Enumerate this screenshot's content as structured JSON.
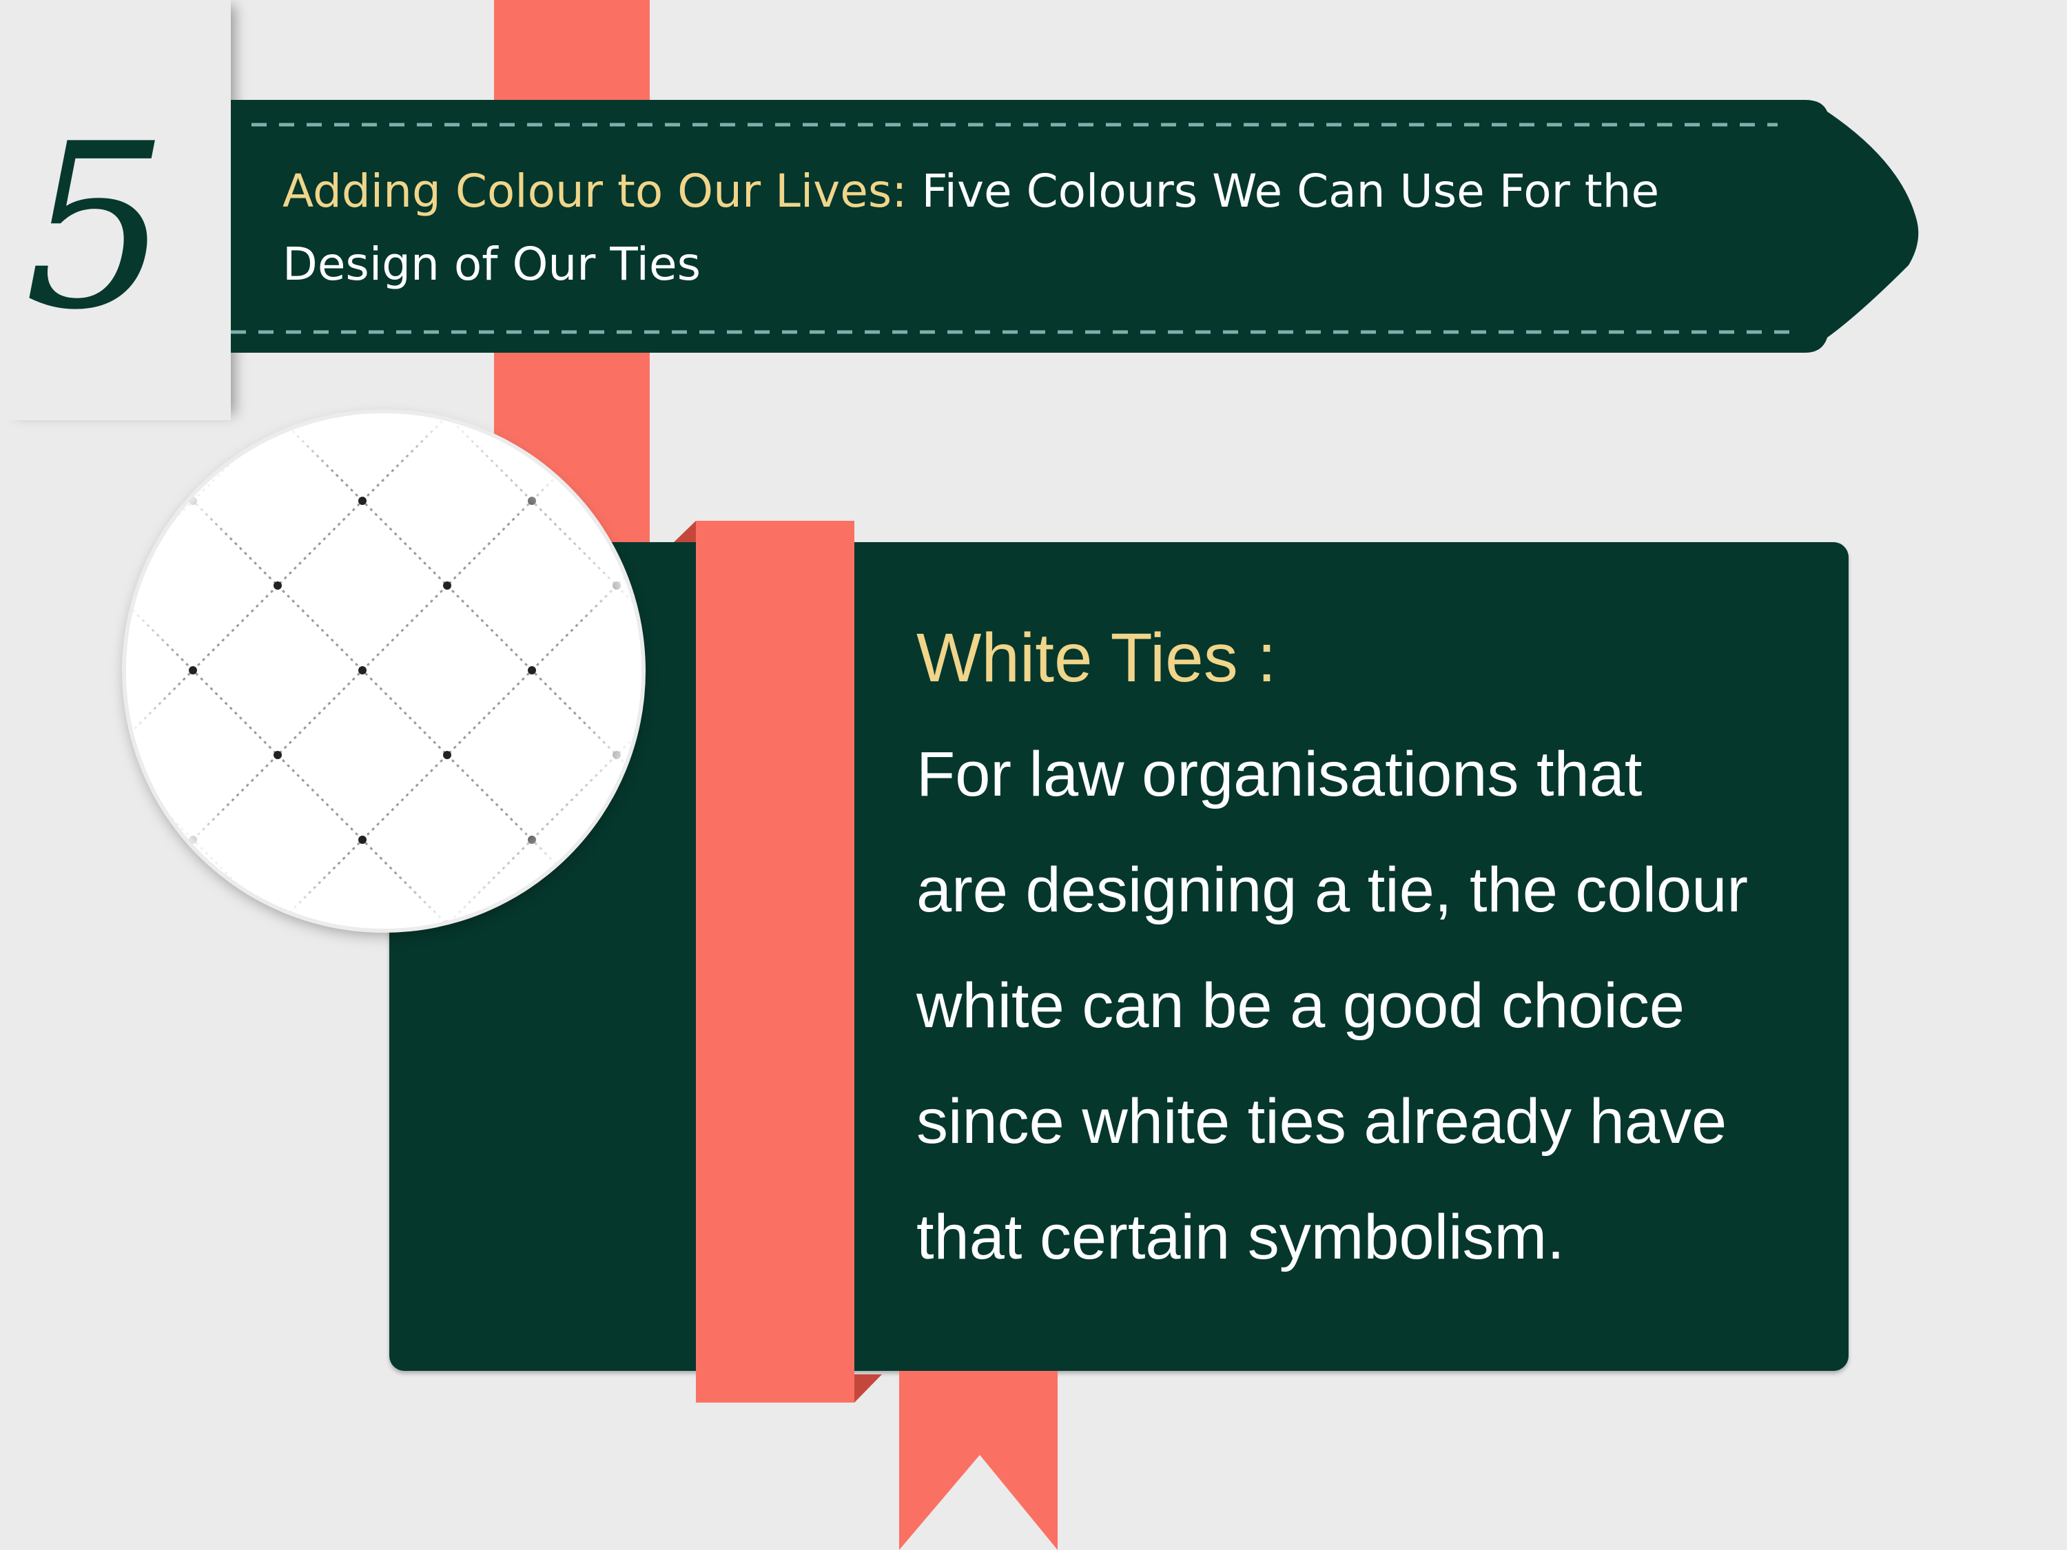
{
  "slide": {
    "number": "5"
  },
  "banner": {
    "title_accent": "Adding Colour to Our Lives:",
    "title_rest_line1": " Five Colours We Can Use For the",
    "title_rest_line2": "Design of Our Ties"
  },
  "card": {
    "heading": "White Ties :",
    "body_lines": [
      "For law organisations that",
      "are designing a tie, the colour",
      "white can be a good choice",
      "since white ties already have",
      "that certain symbolism."
    ]
  },
  "colors": {
    "background": "#ebebeb",
    "dark_green": "#05372d",
    "ribbon": "#fa7163",
    "accent_gold": "#f0d58a",
    "stitch": "#7fb0ad"
  },
  "icons": {
    "swatch": "white-diamond-pattern-swatch"
  }
}
